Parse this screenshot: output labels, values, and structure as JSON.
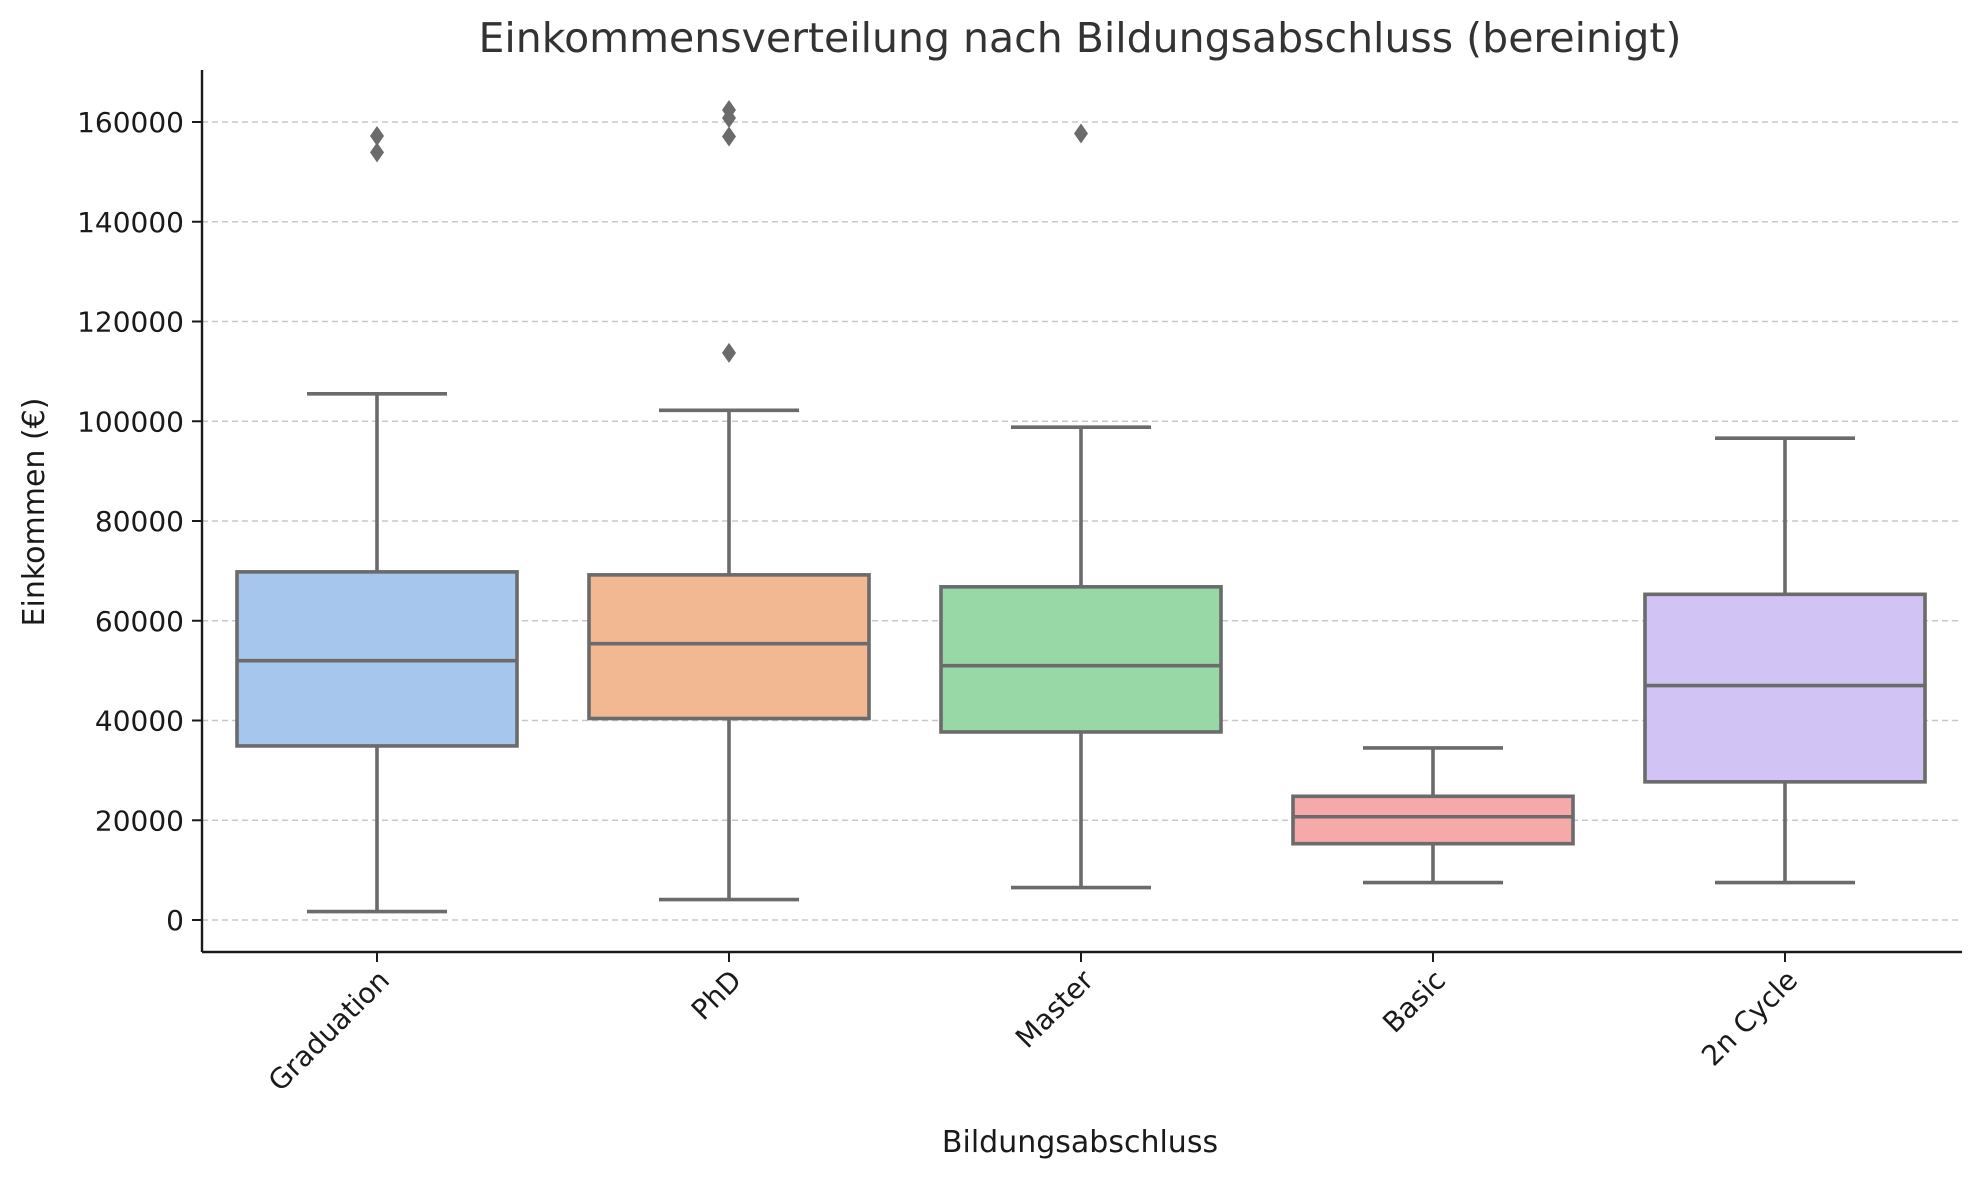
{
  "chart_data": {
    "type": "box",
    "title": "Einkommensverteilung nach Bildungsabschluss (bereinigt)",
    "xlabel": "Bildungsabschluss",
    "ylabel": "Einkommen (€)",
    "ylim": [
      -6000,
      170000
    ],
    "yticks": [
      0,
      20000,
      40000,
      60000,
      80000,
      100000,
      120000,
      140000,
      160000
    ],
    "ytick_labels": [
      "0",
      "20000",
      "40000",
      "60000",
      "80000",
      "100000",
      "120000",
      "140000",
      "160000"
    ],
    "grid": "y",
    "categories": [
      "Graduation",
      "PhD",
      "Master",
      "Basic",
      "2n Cycle"
    ],
    "boxes": [
      {
        "name": "Graduation",
        "whisker_low": 1700,
        "q1": 34900,
        "median": 52000,
        "q3": 69800,
        "whisker_high": 105500,
        "outliers": [
          153900,
          157200
        ],
        "color": "#a7c6ed"
      },
      {
        "name": "PhD",
        "whisker_low": 4100,
        "q1": 40400,
        "median": 55400,
        "q3": 69200,
        "whisker_high": 102200,
        "outliers": [
          113700,
          157100,
          160800,
          162400
        ],
        "color": "#f1b891"
      },
      {
        "name": "Master",
        "whisker_low": 6500,
        "q1": 37700,
        "median": 51000,
        "q3": 66800,
        "whisker_high": 98800,
        "outliers": [
          157700
        ],
        "color": "#97d8a6"
      },
      {
        "name": "Basic",
        "whisker_low": 7500,
        "q1": 15300,
        "median": 20700,
        "q3": 24800,
        "whisker_high": 34500,
        "outliers": [],
        "color": "#f5a9a9"
      },
      {
        "name": "2n Cycle",
        "whisker_low": 7500,
        "q1": 27700,
        "median": 47000,
        "q3": 65300,
        "whisker_high": 96600,
        "outliers": [],
        "color": "#d1c3f4"
      }
    ]
  }
}
